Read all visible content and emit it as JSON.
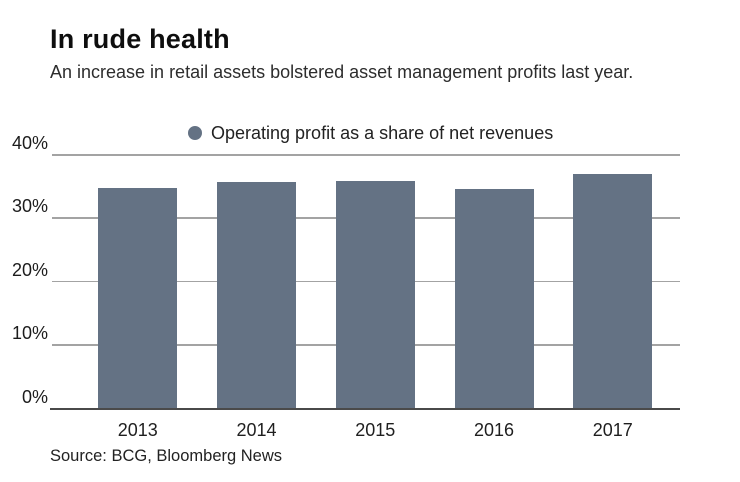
{
  "header": {
    "title": "In rude health",
    "subtitle": "An increase in retail assets bolstered asset management profits last year."
  },
  "legend": {
    "label": "Operating profit as a share of net revenues"
  },
  "source": "Source: BCG, Bloomberg News",
  "colors": {
    "bar": "#647284",
    "legend_dot": "#647284",
    "gridline": "#a3a3a3",
    "baseline": "#4a4a4a",
    "title_text": "#0e0e0e",
    "body_text": "#2d2d2d"
  },
  "chart_data": {
    "type": "bar",
    "title": "In rude health",
    "subtitle": "An increase in retail assets bolstered asset management profits last year.",
    "categories": [
      "2013",
      "2014",
      "2015",
      "2016",
      "2017"
    ],
    "series": [
      {
        "name": "Operating profit as a share of net revenues",
        "values": [
          34.8,
          35.7,
          35.9,
          34.6,
          37.0
        ]
      }
    ],
    "xlabel": "",
    "ylabel": "",
    "ylim": [
      0,
      40
    ],
    "ytick_values": [
      40,
      30,
      20,
      10,
      0
    ],
    "ytick_labels": [
      "40%",
      "30%",
      "20%",
      "10%",
      "0%"
    ],
    "grid": true,
    "legend_position": "top-center",
    "source": "Source: BCG, Bloomberg News"
  }
}
